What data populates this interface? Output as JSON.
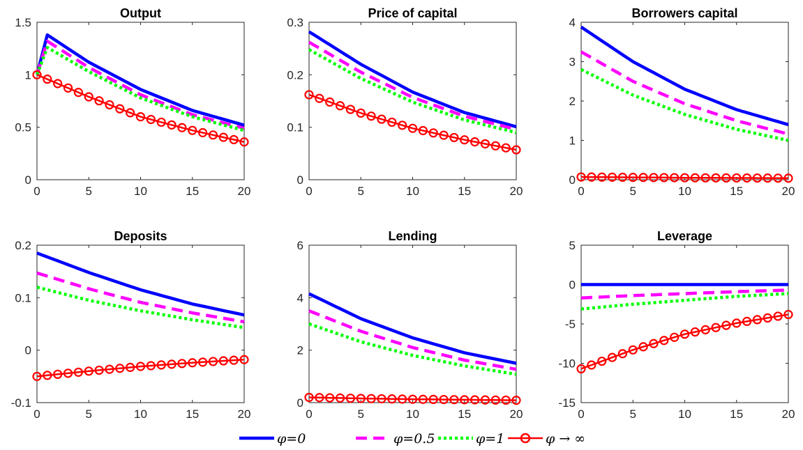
{
  "figure": {
    "legend_placement": "bottom-center",
    "legend": [
      {
        "key": "phi0",
        "label": "φ=0",
        "color": "#0000ff",
        "style": "solid",
        "marker": "none"
      },
      {
        "key": "phi05",
        "label": "φ=0.5",
        "color": "#ff00ff",
        "style": "dashed",
        "marker": "none"
      },
      {
        "key": "phi1",
        "label": "φ=1",
        "color": "#00ff00",
        "style": "dotted",
        "marker": "none"
      },
      {
        "key": "phiinf",
        "label": "φ → ∞",
        "color": "#ff0000",
        "style": "solid",
        "marker": "circle"
      }
    ]
  },
  "chart_data": [
    {
      "type": "line",
      "title": "Output",
      "xlim": [
        0,
        20
      ],
      "ylim": [
        0,
        1.5
      ],
      "xticks": [
        0,
        5,
        10,
        15,
        20
      ],
      "yticks": [
        0,
        0.5,
        1,
        1.5
      ],
      "yticklabels": [
        "0",
        "0.5",
        "1",
        "1.5"
      ],
      "grid": false,
      "series": [
        {
          "key": "phi0",
          "x": [
            0,
            1,
            5,
            10,
            15,
            20
          ],
          "y": [
            1.0,
            1.38,
            1.12,
            0.86,
            0.66,
            0.52
          ]
        },
        {
          "key": "phi05",
          "x": [
            0,
            1,
            5,
            10,
            15,
            20
          ],
          "y": [
            1.0,
            1.32,
            1.07,
            0.81,
            0.62,
            0.49
          ]
        },
        {
          "key": "phi1",
          "x": [
            0,
            1,
            5,
            10,
            15,
            20
          ],
          "y": [
            1.0,
            1.26,
            1.03,
            0.78,
            0.6,
            0.47
          ]
        },
        {
          "key": "phiinf",
          "x": [
            0,
            5,
            10,
            15,
            20
          ],
          "y": [
            1.0,
            0.79,
            0.6,
            0.47,
            0.36
          ]
        }
      ]
    },
    {
      "type": "line",
      "title": "Price of capital",
      "xlim": [
        0,
        20
      ],
      "ylim": [
        0,
        0.3
      ],
      "xticks": [
        0,
        5,
        10,
        15,
        20
      ],
      "yticks": [
        0,
        0.1,
        0.2,
        0.3
      ],
      "yticklabels": [
        "0",
        "0.1",
        "0.2",
        "0.3"
      ],
      "grid": false,
      "series": [
        {
          "key": "phi0",
          "x": [
            0,
            5,
            10,
            15,
            20
          ],
          "y": [
            0.282,
            0.22,
            0.167,
            0.128,
            0.101
          ]
        },
        {
          "key": "phi05",
          "x": [
            0,
            5,
            10,
            15,
            20
          ],
          "y": [
            0.262,
            0.205,
            0.157,
            0.121,
            0.096
          ]
        },
        {
          "key": "phi1",
          "x": [
            0,
            5,
            10,
            15,
            20
          ],
          "y": [
            0.248,
            0.193,
            0.148,
            0.114,
            0.09
          ]
        },
        {
          "key": "phiinf",
          "x": [
            0,
            5,
            10,
            15,
            20
          ],
          "y": [
            0.162,
            0.127,
            0.098,
            0.076,
            0.057
          ]
        }
      ]
    },
    {
      "type": "line",
      "title": "Borrowers capital",
      "xlim": [
        0,
        20
      ],
      "ylim": [
        0,
        4
      ],
      "xticks": [
        0,
        5,
        10,
        15,
        20
      ],
      "yticks": [
        0,
        1,
        2,
        3,
        4
      ],
      "yticklabels": [
        "0",
        "1",
        "2",
        "3",
        "4"
      ],
      "grid": false,
      "series": [
        {
          "key": "phi0",
          "x": [
            0,
            5,
            10,
            15,
            20
          ],
          "y": [
            3.88,
            3.0,
            2.3,
            1.78,
            1.4
          ]
        },
        {
          "key": "phi05",
          "x": [
            0,
            5,
            10,
            15,
            20
          ],
          "y": [
            3.25,
            2.5,
            1.93,
            1.5,
            1.16
          ]
        },
        {
          "key": "phi1",
          "x": [
            0,
            5,
            10,
            15,
            20
          ],
          "y": [
            2.8,
            2.15,
            1.66,
            1.28,
            1.0
          ]
        },
        {
          "key": "phiinf",
          "x": [
            0,
            5,
            10,
            15,
            20
          ],
          "y": [
            0.07,
            0.06,
            0.05,
            0.045,
            0.04
          ]
        }
      ]
    },
    {
      "type": "line",
      "title": "Deposits",
      "xlim": [
        0,
        20
      ],
      "ylim": [
        -0.1,
        0.2
      ],
      "xticks": [
        0,
        5,
        10,
        15,
        20
      ],
      "yticks": [
        -0.1,
        0,
        0.1,
        0.2
      ],
      "yticklabels": [
        "-0.1",
        "0",
        "0.1",
        "0.2"
      ],
      "grid": false,
      "series": [
        {
          "key": "phi0",
          "x": [
            0,
            5,
            10,
            15,
            20
          ],
          "y": [
            0.185,
            0.148,
            0.115,
            0.088,
            0.067
          ]
        },
        {
          "key": "phi05",
          "x": [
            0,
            5,
            10,
            15,
            20
          ],
          "y": [
            0.147,
            0.117,
            0.091,
            0.071,
            0.054
          ]
        },
        {
          "key": "phi1",
          "x": [
            0,
            5,
            10,
            15,
            20
          ],
          "y": [
            0.12,
            0.095,
            0.075,
            0.058,
            0.043
          ]
        },
        {
          "key": "phiinf",
          "x": [
            0,
            5,
            10,
            15,
            20
          ],
          "y": [
            -0.05,
            -0.04,
            -0.031,
            -0.024,
            -0.018
          ]
        }
      ]
    },
    {
      "type": "line",
      "title": "Lending",
      "xlim": [
        0,
        20
      ],
      "ylim": [
        0,
        6
      ],
      "xticks": [
        0,
        5,
        10,
        15,
        20
      ],
      "yticks": [
        0,
        2,
        4,
        6
      ],
      "yticklabels": [
        "0",
        "2",
        "4",
        "6"
      ],
      "grid": false,
      "series": [
        {
          "key": "phi0",
          "x": [
            0,
            5,
            10,
            15,
            20
          ],
          "y": [
            4.15,
            3.2,
            2.47,
            1.9,
            1.5
          ]
        },
        {
          "key": "phi05",
          "x": [
            0,
            5,
            10,
            15,
            20
          ],
          "y": [
            3.5,
            2.72,
            2.1,
            1.62,
            1.27
          ]
        },
        {
          "key": "phi1",
          "x": [
            0,
            5,
            10,
            15,
            20
          ],
          "y": [
            3.0,
            2.32,
            1.8,
            1.4,
            1.08
          ]
        },
        {
          "key": "phiinf",
          "x": [
            0,
            5,
            10,
            15,
            20
          ],
          "y": [
            0.2,
            0.16,
            0.13,
            0.11,
            0.09
          ]
        }
      ]
    },
    {
      "type": "line",
      "title": "Leverage",
      "xlim": [
        0,
        20
      ],
      "ylim": [
        -15,
        5
      ],
      "xticks": [
        0,
        5,
        10,
        15,
        20
      ],
      "yticks": [
        -15,
        -10,
        -5,
        0,
        5
      ],
      "yticklabels": [
        "-15",
        "-10",
        "-5",
        "0",
        "5"
      ],
      "grid": false,
      "series": [
        {
          "key": "phi0",
          "x": [
            0,
            5,
            10,
            15,
            20
          ],
          "y": [
            0,
            0,
            0,
            0,
            0
          ]
        },
        {
          "key": "phi05",
          "x": [
            0,
            5,
            10,
            15,
            20
          ],
          "y": [
            -1.7,
            -1.4,
            -1.15,
            -0.9,
            -0.7
          ]
        },
        {
          "key": "phi1",
          "x": [
            0,
            5,
            10,
            15,
            20
          ],
          "y": [
            -3.1,
            -2.5,
            -2.0,
            -1.5,
            -1.15
          ]
        },
        {
          "key": "phiinf",
          "x": [
            0,
            5,
            10,
            15,
            20
          ],
          "y": [
            -10.7,
            -8.3,
            -6.3,
            -4.9,
            -3.8
          ]
        }
      ]
    }
  ]
}
